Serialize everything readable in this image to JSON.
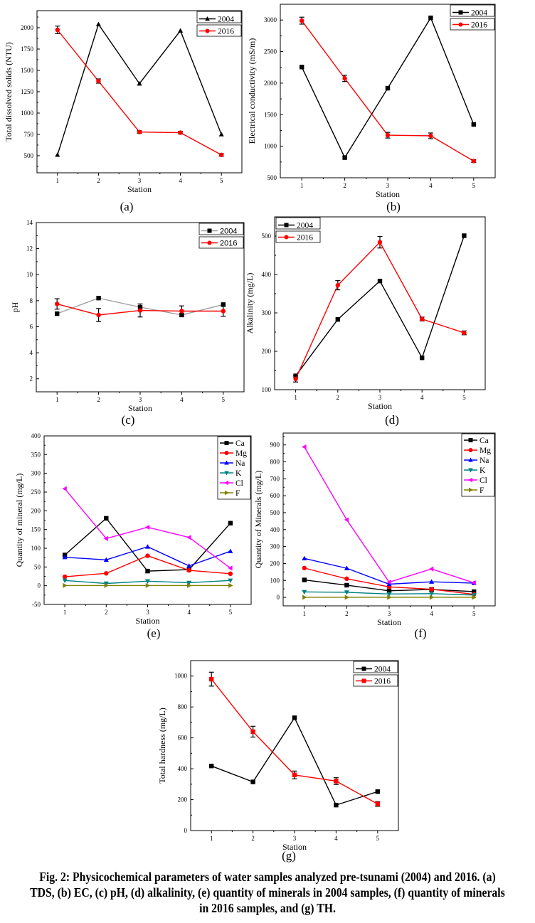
{
  "caption": "Fig. 2: Physicochemical parameters of water samples analyzed pre-tsunami (2004) and 2016. (a) TDS, (b) EC, (c) pH, (d) alkalinity, (e) quantity of minerals in 2004 samples, (f) quantity of minerals in 2016 samples, and (g) TH.",
  "colors": {
    "black": "#000000",
    "red": "#ff0000",
    "blue": "#0000ff",
    "teal": "#008080",
    "magenta": "#ff00ff",
    "olive": "#808000",
    "gray": "#a0a0a0"
  },
  "chart_data": [
    {
      "id": "a",
      "panel_label": "(a)",
      "type": "line",
      "title": "",
      "xlabel": "Station",
      "ylabel": "Total dissolved solids (NTU)",
      "x": [
        1,
        2,
        3,
        4,
        5
      ],
      "xticks": [
        "1",
        "2",
        "3",
        "4",
        "5"
      ],
      "xlim": [
        0.5,
        5.5
      ],
      "ylim": [
        300,
        2200
      ],
      "yticks": [
        500,
        750,
        1000,
        1250,
        1500,
        1750,
        2000
      ],
      "grid": false,
      "legend": "top-right",
      "series": [
        {
          "name": "2004",
          "color": "#000000",
          "marker": "triangle-up",
          "values": [
            510,
            2040,
            1345,
            1965,
            750
          ]
        },
        {
          "name": "2016",
          "color": "#ff0000",
          "marker": "circle",
          "values": [
            1975,
            1375,
            778,
            770,
            510
          ],
          "errors": [
            45,
            25,
            15,
            15,
            15
          ]
        }
      ]
    },
    {
      "id": "b",
      "panel_label": "(b)",
      "type": "line",
      "title": "",
      "xlabel": "Station",
      "ylabel": "Electrical conductivity (mS/m)",
      "x": [
        1,
        2,
        3,
        4,
        5
      ],
      "xticks": [
        "1",
        "2",
        "3",
        "4",
        "5"
      ],
      "xlim": [
        0.5,
        5.5
      ],
      "ylim": [
        500,
        3250
      ],
      "yticks": [
        500,
        1000,
        1500,
        2000,
        2500,
        3000
      ],
      "grid": false,
      "legend": "top-right",
      "series": [
        {
          "name": "2004",
          "color": "#000000",
          "marker": "square",
          "values": [
            2255,
            820,
            1920,
            3035,
            1345
          ]
        },
        {
          "name": "2016",
          "color": "#ff0000",
          "marker": "circle",
          "values": [
            2990,
            2075,
            1175,
            1165,
            765
          ],
          "errors": [
            55,
            50,
            45,
            45,
            20
          ]
        }
      ]
    },
    {
      "id": "c",
      "panel_label": "(c)",
      "type": "line",
      "title": "",
      "xlabel": "Station",
      "ylabel": "pH",
      "x": [
        1,
        2,
        3,
        4,
        5
      ],
      "xticks": [
        "1",
        "2",
        "3",
        "4",
        "5"
      ],
      "xlim": [
        0.5,
        5.5
      ],
      "ylim": [
        1,
        14
      ],
      "yticks": [
        2,
        4,
        6,
        8,
        10,
        12,
        14
      ],
      "grid": false,
      "legend": "top-right",
      "series": [
        {
          "name": "2004",
          "color": "#a0a0a0",
          "marker": "square",
          "marker_color": "#000000",
          "values": [
            7.0,
            8.2,
            7.5,
            6.9,
            7.7
          ]
        },
        {
          "name": "2016",
          "color": "#ff0000",
          "marker": "circle",
          "values": [
            7.75,
            6.9,
            7.25,
            7.2,
            7.2
          ],
          "errors": [
            0.4,
            0.5,
            0.5,
            0.4,
            0.4
          ]
        }
      ]
    },
    {
      "id": "d",
      "panel_label": "(d)",
      "type": "line",
      "title": "",
      "xlabel": "Station",
      "ylabel": "Alkalinity (mg/L)",
      "x": [
        1,
        2,
        3,
        4,
        5
      ],
      "xticks": [
        "1",
        "2",
        "3",
        "4",
        "5"
      ],
      "xlim": [
        0.5,
        5.5
      ],
      "ylim": [
        100,
        550
      ],
      "yticks": [
        100,
        200,
        300,
        400,
        500
      ],
      "grid": false,
      "legend": "top-left",
      "series": [
        {
          "name": "2004",
          "color": "#000000",
          "marker": "square",
          "values": [
            136,
            283,
            383,
            183,
            501
          ]
        },
        {
          "name": "2016",
          "color": "#ff0000",
          "marker": "circle",
          "values": [
            128,
            372,
            484,
            284,
            248
          ],
          "errors": [
            8,
            12,
            15,
            5,
            5
          ]
        }
      ]
    },
    {
      "id": "e",
      "panel_label": "(e)",
      "type": "line",
      "title": "",
      "xlabel": "Station",
      "ylabel": "Quantity of mineral (mg/L)",
      "x": [
        1,
        2,
        3,
        4,
        5
      ],
      "xticks": [
        "1",
        "2",
        "3",
        "4",
        "5"
      ],
      "xlim": [
        0.5,
        5.5
      ],
      "ylim": [
        -50,
        400
      ],
      "yticks": [
        -50,
        0,
        50,
        100,
        150,
        200,
        250,
        300,
        350,
        400
      ],
      "grid": false,
      "legend": "top-right",
      "series": [
        {
          "name": "Ca",
          "color": "#000000",
          "marker": "square",
          "values": [
            82,
            180,
            39,
            43,
            167
          ]
        },
        {
          "name": "Mg",
          "color": "#ff0000",
          "marker": "circle",
          "values": [
            24,
            33,
            80,
            41,
            32
          ]
        },
        {
          "name": "Na",
          "color": "#0000ff",
          "marker": "triangle-up",
          "values": [
            76,
            69,
            104,
            53,
            92
          ]
        },
        {
          "name": "K",
          "color": "#008080",
          "marker": "triangle-down",
          "values": [
            14,
            6,
            12,
            8,
            14
          ]
        },
        {
          "name": "Cl",
          "color": "#ff00ff",
          "marker": "triangle-left",
          "values": [
            259,
            126,
            156,
            129,
            47
          ]
        },
        {
          "name": "F",
          "color": "#808000",
          "marker": "triangle-right",
          "values": [
            0.5,
            0.5,
            0.5,
            0.5,
            0.5
          ]
        }
      ]
    },
    {
      "id": "f",
      "panel_label": "(f)",
      "type": "line",
      "title": "",
      "xlabel": "Station",
      "ylabel": "Quantity of Minerals (mg/L)",
      "x": [
        1,
        2,
        3,
        4,
        5
      ],
      "xticks": [
        "1",
        "2",
        "3",
        "4",
        "5"
      ],
      "xlim": [
        0.5,
        5.5
      ],
      "ylim": [
        -50,
        970
      ],
      "yticks": [
        0,
        100,
        200,
        300,
        400,
        500,
        600,
        700,
        800,
        900
      ],
      "grid": false,
      "legend": "top-right",
      "series": [
        {
          "name": "Ca",
          "color": "#000000",
          "marker": "square",
          "values": [
            103,
            72,
            39,
            47,
            34
          ]
        },
        {
          "name": "Mg",
          "color": "#ff0000",
          "marker": "circle",
          "values": [
            173,
            110,
            62,
            48,
            18
          ]
        },
        {
          "name": "Na",
          "color": "#0000ff",
          "marker": "triangle-up",
          "values": [
            230,
            172,
            78,
            92,
            84
          ]
        },
        {
          "name": "K",
          "color": "#008080",
          "marker": "triangle-down",
          "values": [
            32,
            30,
            20,
            22,
            14
          ]
        },
        {
          "name": "Cl",
          "color": "#ff00ff",
          "marker": "triangle-left",
          "values": [
            888,
            458,
            90,
            168,
            86
          ]
        },
        {
          "name": "F",
          "color": "#808000",
          "marker": "triangle-right",
          "values": [
            0.5,
            0.5,
            0.5,
            0.5,
            0.5
          ]
        }
      ]
    },
    {
      "id": "g",
      "panel_label": "(g)",
      "type": "line",
      "title": "",
      "xlabel": "Station",
      "ylabel": "Total hardness (mg/L)",
      "x": [
        1,
        2,
        3,
        4,
        5
      ],
      "xticks": [
        "1",
        "2",
        "3",
        "4",
        "5"
      ],
      "xlim": [
        0.5,
        5.5
      ],
      "ylim": [
        0,
        1100
      ],
      "yticks": [
        0,
        200,
        400,
        600,
        800,
        1000
      ],
      "grid": false,
      "legend": "top-right",
      "series": [
        {
          "name": "2004",
          "color": "#000000",
          "marker": "square",
          "values": [
            418,
            315,
            730,
            165,
            252
          ]
        },
        {
          "name": "2016",
          "color": "#ff0000",
          "marker": "square",
          "values": [
            980,
            640,
            360,
            320,
            172
          ],
          "errors": [
            45,
            35,
            25,
            22,
            15
          ]
        }
      ]
    }
  ]
}
